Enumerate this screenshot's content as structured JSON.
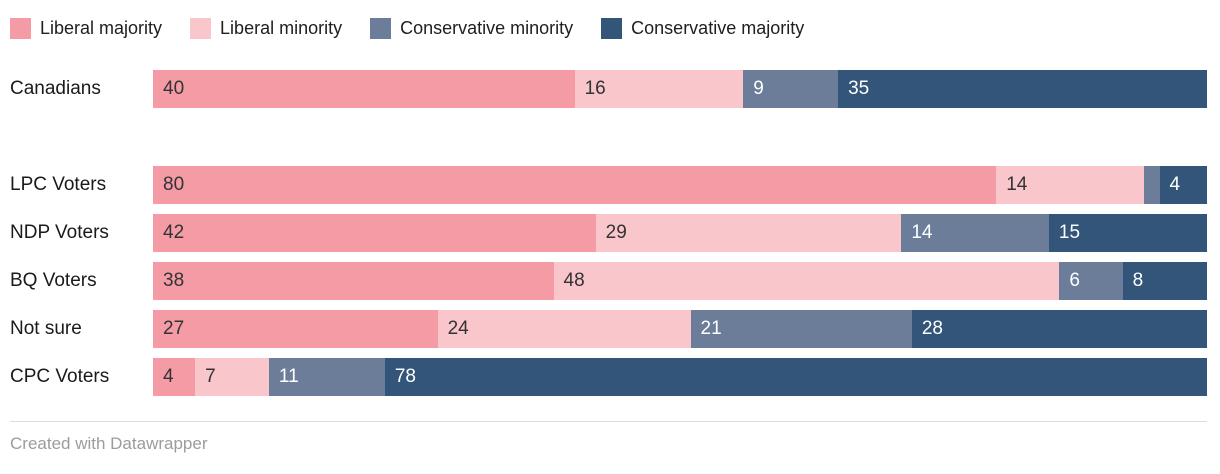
{
  "colors": {
    "liberal_majority": "#f49ba6",
    "liberal_minority": "#f9c6cb",
    "conservative_minority": "#6b7d98",
    "conservative_majority": "#325579",
    "value_label_dark": "#333333",
    "value_label_light": "#ffffff",
    "row_label": "#1a1a1a",
    "footer_text": "#9c9c9c"
  },
  "legend": [
    {
      "label": "Liberal majority",
      "color": "#f49ba6"
    },
    {
      "label": "Liberal minority",
      "color": "#f9c6cb"
    },
    {
      "label": "Conservative minority",
      "color": "#6b7d98"
    },
    {
      "label": "Conservative majority",
      "color": "#325579"
    }
  ],
  "chart_data": {
    "type": "bar",
    "orientation": "horizontal",
    "stacked": true,
    "value_range": [
      0,
      100
    ],
    "grid": false,
    "legend_position": "top",
    "categories": [
      "Canadians",
      "LPC Voters",
      "NDP Voters",
      "BQ Voters",
      "Not sure",
      "CPC Voters"
    ],
    "series_names": [
      "Liberal majority",
      "Liberal minority",
      "Conservative minority",
      "Conservative majority"
    ],
    "rows": [
      {
        "category": "Canadians",
        "gap_after": true,
        "segments": [
          {
            "value": 40,
            "label": "40"
          },
          {
            "value": 16,
            "label": "16"
          },
          {
            "value": 9,
            "label": "9"
          },
          {
            "value": 35,
            "label": "35"
          }
        ]
      },
      {
        "category": "LPC Voters",
        "gap_after": false,
        "segments": [
          {
            "value": 80,
            "label": "80"
          },
          {
            "value": 14,
            "label": "14"
          },
          {
            "value": 1.5,
            "label": ""
          },
          {
            "value": 4.5,
            "label": "4"
          }
        ]
      },
      {
        "category": "NDP Voters",
        "gap_after": false,
        "segments": [
          {
            "value": 42,
            "label": "42"
          },
          {
            "value": 29,
            "label": "29"
          },
          {
            "value": 14,
            "label": "14"
          },
          {
            "value": 15,
            "label": "15"
          }
        ]
      },
      {
        "category": "BQ Voters",
        "gap_after": false,
        "segments": [
          {
            "value": 38,
            "label": "38"
          },
          {
            "value": 48,
            "label": "48"
          },
          {
            "value": 6,
            "label": "6"
          },
          {
            "value": 8,
            "label": "8"
          }
        ]
      },
      {
        "category": "Not sure",
        "gap_after": false,
        "segments": [
          {
            "value": 27,
            "label": "27"
          },
          {
            "value": 24,
            "label": "24"
          },
          {
            "value": 21,
            "label": "21"
          },
          {
            "value": 28,
            "label": "28"
          }
        ]
      },
      {
        "category": "CPC Voters",
        "gap_after": false,
        "segments": [
          {
            "value": 4,
            "label": "4"
          },
          {
            "value": 7,
            "label": "7"
          },
          {
            "value": 11,
            "label": "11"
          },
          {
            "value": 78,
            "label": "78"
          }
        ]
      }
    ]
  },
  "footer": {
    "attribution": "Created with Datawrapper"
  }
}
